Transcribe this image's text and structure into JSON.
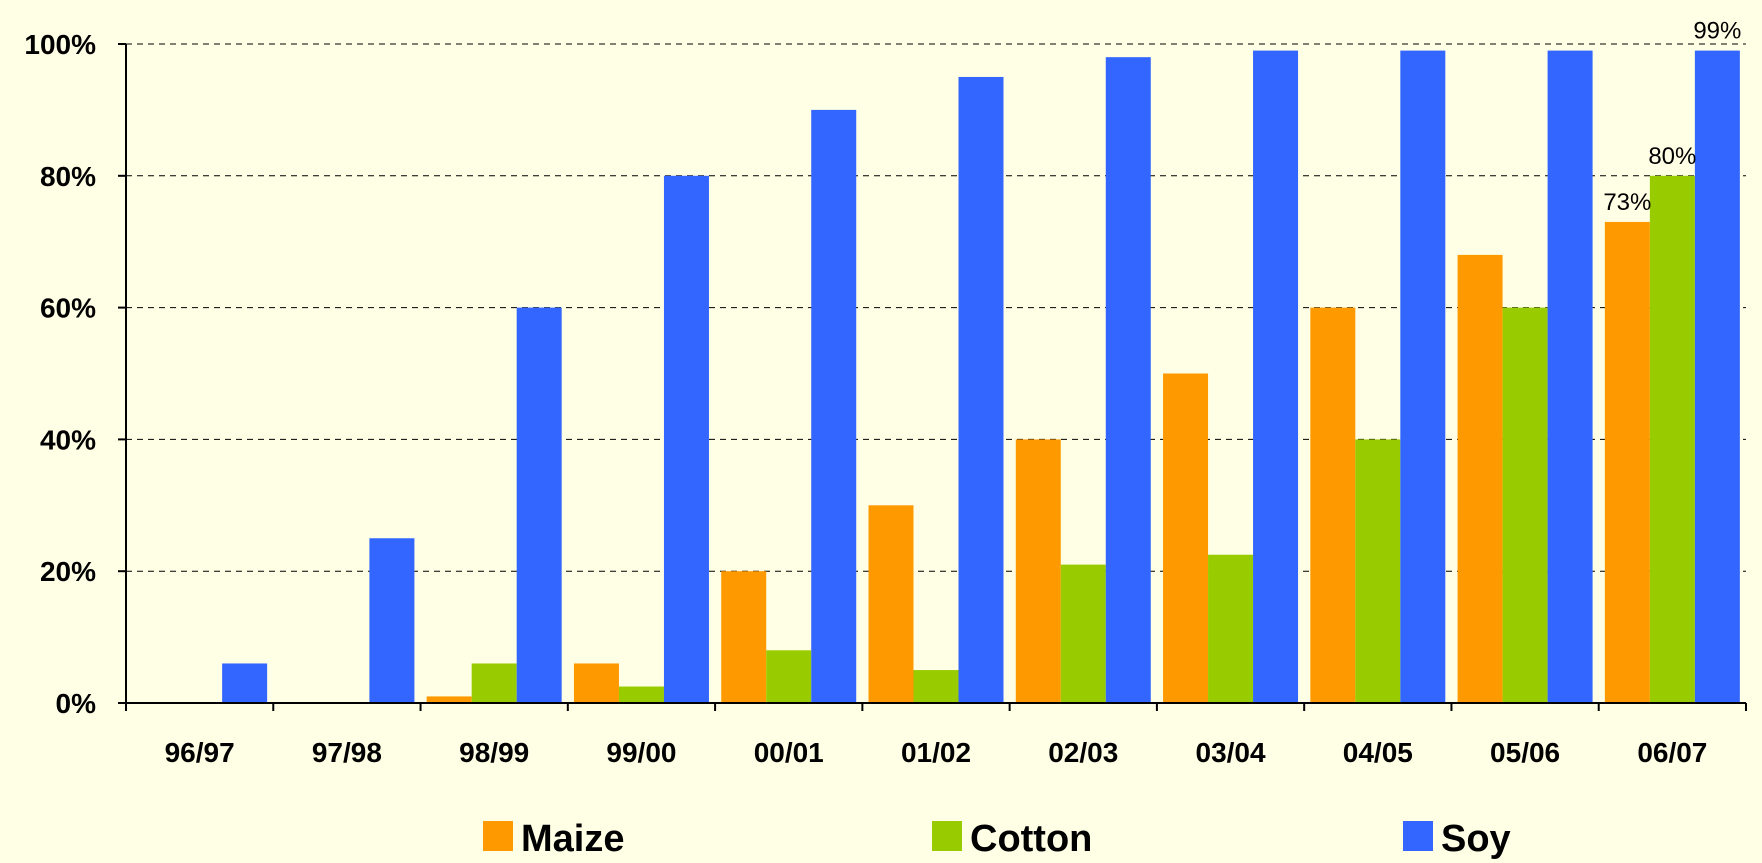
{
  "chart_data": {
    "type": "bar",
    "categories": [
      "96/97",
      "97/98",
      "98/99",
      "99/00",
      "00/01",
      "01/02",
      "02/03",
      "03/04",
      "04/05",
      "05/06",
      "06/07"
    ],
    "series": [
      {
        "name": "Maize",
        "color": "#FF9900",
        "values": [
          0,
          0,
          1,
          6,
          20,
          30,
          40,
          50,
          60,
          68,
          73
        ]
      },
      {
        "name": "Cotton",
        "color": "#99CC00",
        "values": [
          0,
          0,
          6,
          2.5,
          8,
          5,
          21,
          22.5,
          40,
          60,
          80
        ]
      },
      {
        "name": "Soy",
        "color": "#3366FF",
        "values": [
          6,
          25,
          60,
          80,
          90,
          95,
          98,
          99,
          99,
          99,
          99
        ]
      }
    ],
    "y_ticks": [
      "0%",
      "20%",
      "40%",
      "60%",
      "80%",
      "100%"
    ],
    "y_tick_values": [
      0,
      20,
      40,
      60,
      80,
      100
    ],
    "ylim": [
      0,
      100
    ],
    "grid": true,
    "legend_position": "bottom",
    "data_labels": [
      {
        "series": "Maize",
        "category": "06/07",
        "text": "73%"
      },
      {
        "series": "Cotton",
        "category": "06/07",
        "text": "80%"
      },
      {
        "series": "Soy",
        "category": "06/07",
        "text": "99%"
      }
    ]
  }
}
